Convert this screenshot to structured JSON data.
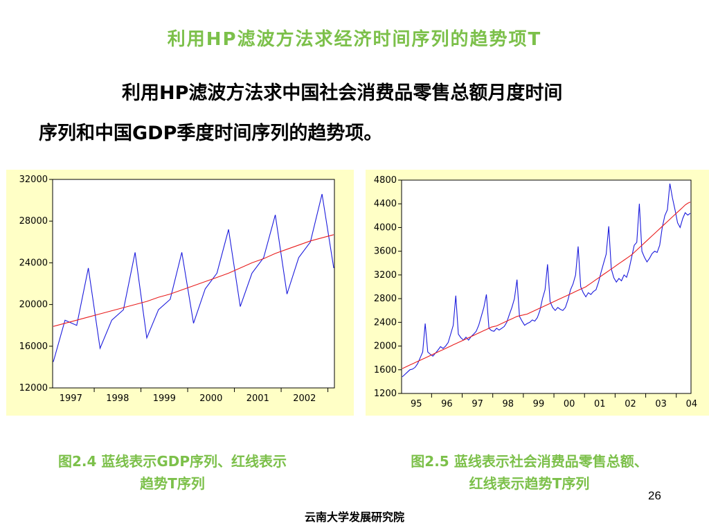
{
  "slide": {
    "title": "利用HP滤波方法求经济时间序列的趋势项T",
    "body_line1": "利用HP滤波方法求中国社会消费品零售总额月度时间",
    "body_line2": "序列和中国GDP季度时间序列的趋势项。",
    "caption_left_line1": "图2.4 蓝线表示GDP序列、红线表示",
    "caption_left_line2": "趋势T序列",
    "caption_right_line1": "图2.5  蓝线表示社会消费品零售总额、",
    "caption_right_line2": "红线表示趋势T序列",
    "page_number": "26",
    "footer": "云南大学发展研究院"
  },
  "colors": {
    "accent_green": "#7cc04a",
    "panel_bg": "#ffffc6",
    "series_blue": "#1a1adc",
    "trend_red": "#e81c1c"
  },
  "chart_data": [
    {
      "type": "line",
      "frequency": "quarterly",
      "x_ticks": [
        "1997",
        "1998",
        "1999",
        "2000",
        "2001",
        "2002"
      ],
      "ylim": [
        12000,
        32000
      ],
      "y_ticks": [
        12000,
        16000,
        20000,
        24000,
        28000,
        32000
      ],
      "grid": false,
      "series": [
        {
          "color": "blue",
          "values": [
            14500,
            18500,
            18000,
            23500,
            15800,
            18500,
            19500,
            25000,
            16800,
            19500,
            20500,
            25000,
            18200,
            21500,
            23000,
            27200,
            19800,
            23000,
            24500,
            28600,
            21000,
            24500,
            26000,
            30600,
            23500
          ]
        },
        {
          "color": "red",
          "values": [
            17900,
            18200,
            18500,
            18800,
            19100,
            19400,
            19700,
            20000,
            20300,
            20700,
            21000,
            21400,
            21800,
            22200,
            22600,
            23000,
            23500,
            24000,
            24400,
            24900,
            25300,
            25700,
            26100,
            26400,
            26700
          ]
        }
      ]
    },
    {
      "type": "line",
      "frequency": "monthly",
      "x_ticks": [
        "95",
        "96",
        "97",
        "98",
        "99",
        "00",
        "01",
        "02",
        "03",
        "04"
      ],
      "ylim": [
        1200,
        4800
      ],
      "y_ticks": [
        1200,
        1600,
        2000,
        2400,
        2800,
        3200,
        3600,
        4000,
        4400,
        4800
      ],
      "grid": false,
      "series": [
        {
          "color": "blue",
          "values": [
            1480,
            1520,
            1560,
            1600,
            1610,
            1640,
            1700,
            1800,
            1900,
            2380,
            1900,
            1860,
            1830,
            1880,
            1930,
            1990,
            1960,
            2000,
            2060,
            2200,
            2350,
            2850,
            2200,
            2140,
            2100,
            2150,
            2100,
            2160,
            2200,
            2250,
            2350,
            2500,
            2650,
            2870,
            2300,
            2260,
            2250,
            2300,
            2270,
            2300,
            2330,
            2400,
            2530,
            2650,
            2800,
            3120,
            2500,
            2420,
            2350,
            2380,
            2400,
            2440,
            2420,
            2480,
            2600,
            2800,
            2950,
            3380,
            2750,
            2650,
            2600,
            2650,
            2620,
            2600,
            2650,
            2780,
            2950,
            3050,
            3200,
            3680,
            3000,
            2900,
            2830,
            2900,
            2870,
            2920,
            2950,
            3080,
            3250,
            3400,
            3550,
            4020,
            3300,
            3150,
            3080,
            3140,
            3100,
            3200,
            3160,
            3300,
            3500,
            3700,
            3750,
            4400,
            3600,
            3500,
            3420,
            3480,
            3560,
            3600,
            3580,
            3700,
            4000,
            4200,
            4300,
            4740,
            4500,
            4300,
            4080,
            4000,
            4150,
            4250,
            4210,
            4240
          ]
        },
        {
          "color": "red",
          "values": [
            1620,
            1640,
            1660,
            1680,
            1700,
            1720,
            1740,
            1760,
            1780,
            1800,
            1820,
            1840,
            1860,
            1880,
            1900,
            1920,
            1940,
            1960,
            1980,
            2000,
            2020,
            2040,
            2060,
            2080,
            2100,
            2120,
            2140,
            2160,
            2180,
            2200,
            2220,
            2240,
            2260,
            2280,
            2300,
            2320,
            2330,
            2340,
            2360,
            2380,
            2400,
            2420,
            2440,
            2460,
            2480,
            2500,
            2510,
            2520,
            2530,
            2540,
            2560,
            2580,
            2600,
            2620,
            2640,
            2660,
            2680,
            2700,
            2720,
            2740,
            2760,
            2780,
            2800,
            2820,
            2840,
            2860,
            2880,
            2900,
            2920,
            2940,
            2960,
            2980,
            3000,
            3030,
            3060,
            3090,
            3120,
            3150,
            3180,
            3210,
            3240,
            3270,
            3300,
            3330,
            3360,
            3390,
            3420,
            3450,
            3480,
            3510,
            3540,
            3580,
            3620,
            3660,
            3700,
            3740,
            3780,
            3820,
            3860,
            3900,
            3940,
            3980,
            4020,
            4060,
            4100,
            4140,
            4180,
            4220,
            4260,
            4300,
            4340,
            4380,
            4410,
            4430
          ]
        }
      ]
    }
  ]
}
